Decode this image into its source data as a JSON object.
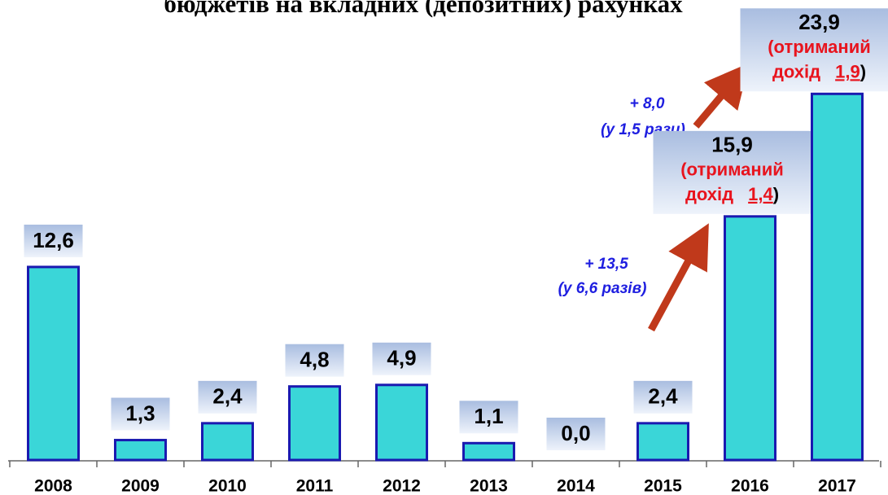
{
  "chart_data": {
    "type": "bar",
    "title": "бюджетів на вкладних (депозитних) рахунках",
    "categories": [
      "2008",
      "2009",
      "2010",
      "2011",
      "2012",
      "2013",
      "2014",
      "2015",
      "2016",
      "2017"
    ],
    "values": [
      12.6,
      1.3,
      2.4,
      4.8,
      4.9,
      1.1,
      0.0,
      2.4,
      15.9,
      23.9
    ],
    "value_labels": [
      "12,6",
      "1,3",
      "2,4",
      "4,8",
      "4,9",
      "1,1",
      "0,0",
      "2,4",
      "15,9",
      "23,9"
    ],
    "income_notes": [
      null,
      null,
      null,
      null,
      null,
      null,
      null,
      null,
      {
        "line1": "(отриманий",
        "line2": "дохід",
        "income": "1,4",
        "close": ")"
      },
      {
        "line1": "(отриманий",
        "line2": "дохід",
        "income": "1,9",
        "close": ")"
      }
    ],
    "annotations": [
      {
        "change": "+ 13,5",
        "ratio": "(у 6,6 разів)"
      },
      {
        "change": "+ 8,0",
        "ratio": "(у 1,5 рази)"
      }
    ],
    "color": "#3ad6d8",
    "edge_color": "#1a1ab0",
    "ylim": [
      0,
      24.5
    ]
  }
}
